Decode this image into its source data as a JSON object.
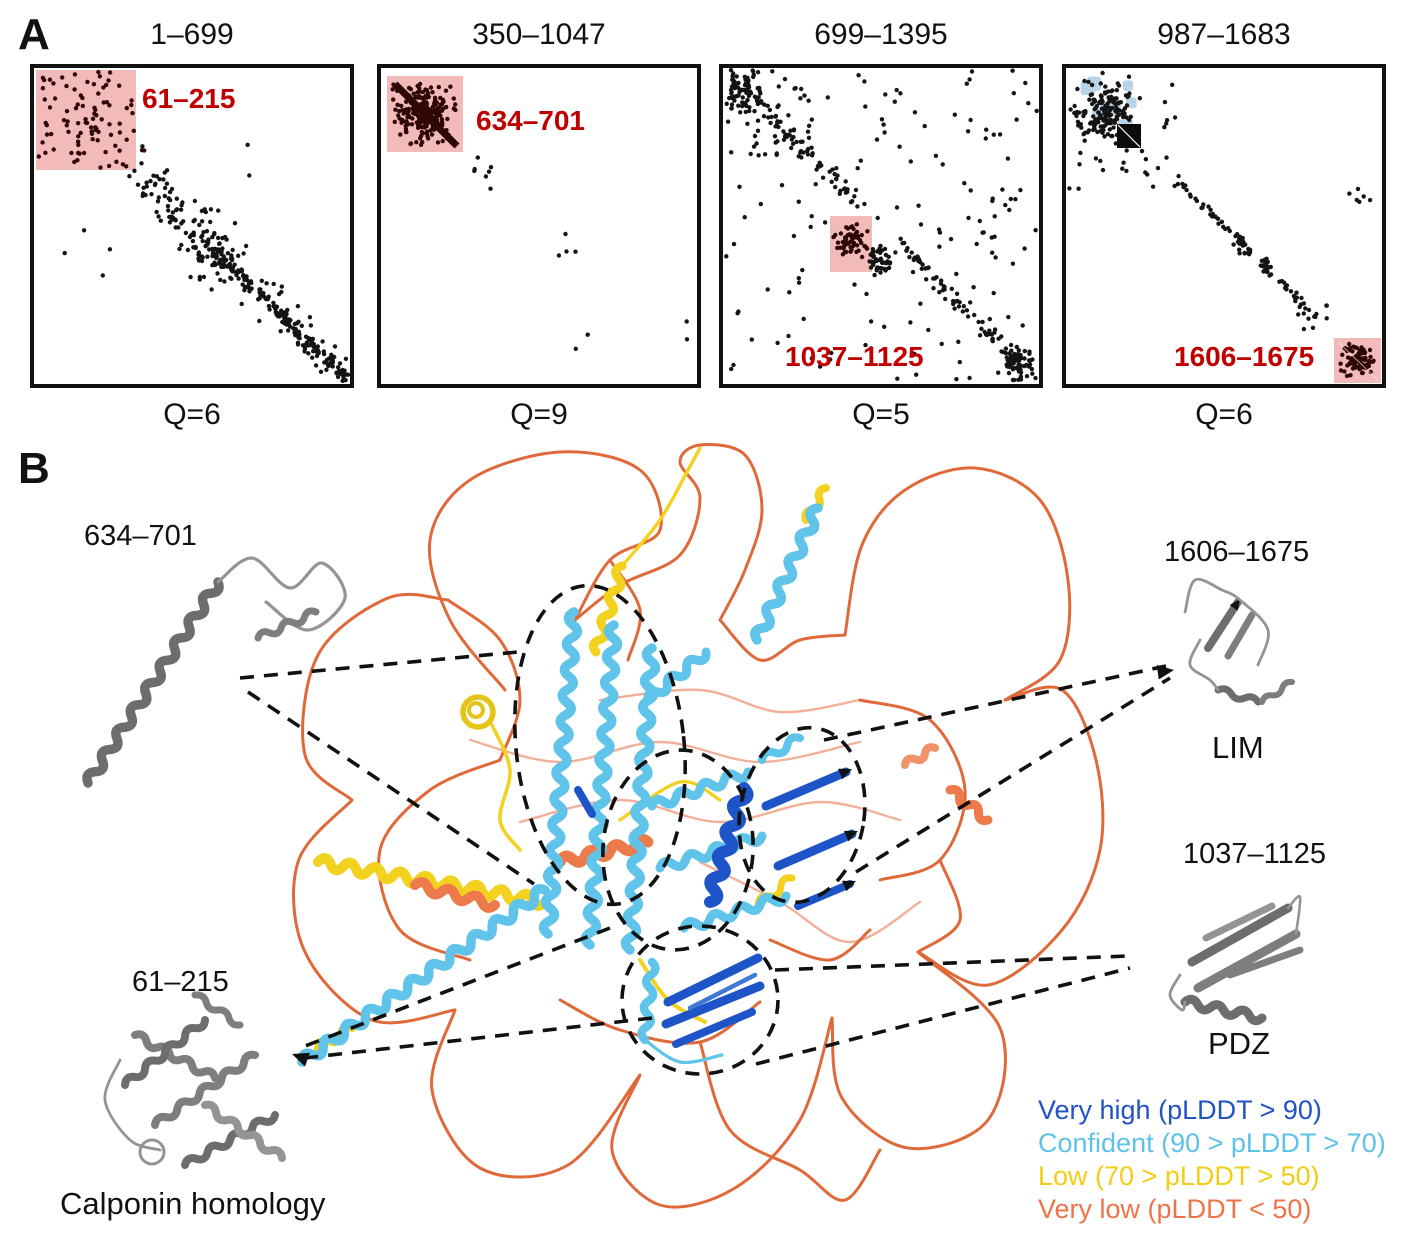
{
  "figure": {
    "panel_a_letter": "A",
    "panel_b_letter": "B"
  },
  "contact_maps": {
    "label_color": "#c00000",
    "dot_color": "#141414",
    "highlight_fill": "#f0aeac",
    "highlight_dot_color": "#2f0707",
    "blue_mark_color": "#b9d3e8",
    "panels": [
      {
        "title": "1–699",
        "q_label": "Q=6",
        "region_label": "61–215"
      },
      {
        "title": "350–1047",
        "q_label": "Q=9",
        "region_label": "634–701"
      },
      {
        "title": "699–1395",
        "q_label": "Q=5",
        "region_label": "1037–1125"
      },
      {
        "title": "987–1683",
        "q_label": "Q=6",
        "region_label": "1606–1675"
      }
    ]
  },
  "structure_labels": {
    "helix_634": {
      "range": "634–701"
    },
    "lim": {
      "range": "1606–1675",
      "name": "LIM"
    },
    "pdz": {
      "range": "1037–1125",
      "name": "PDZ"
    },
    "ch": {
      "range": "61–215",
      "name": "Calponin homology"
    }
  },
  "legend": {
    "items": [
      {
        "label": "Very high (pLDDT > 90)",
        "color": "#2152c6"
      },
      {
        "label": "Confident (90 > pLDDT > 70)",
        "color": "#5ec1e9"
      },
      {
        "label": "Low (70 > pLDDT > 50)",
        "color": "#f3cd15"
      },
      {
        "label": "Very low (pLDDT < 50)",
        "color": "#ee7349"
      }
    ]
  },
  "structure_colors": {
    "loop_orange": "#e0693a",
    "loop_salmon": "#f2b09a",
    "helix_blue": "#5fc3ea",
    "sheet_blue": "#1d55c8",
    "strand_yellow": "#f3d11f",
    "helix_orange": "#ed7a4b",
    "inset_gray": "#7e7e7e"
  }
}
